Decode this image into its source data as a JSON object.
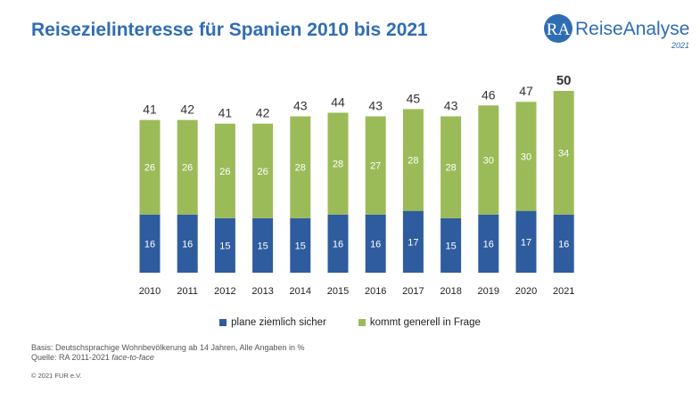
{
  "title": "Reisezielinteresse für Spanien 2010 bis 2021",
  "logo": {
    "abbr": "RA",
    "name": "ReiseAnalyse",
    "year": "2021"
  },
  "chart_data": {
    "type": "bar",
    "stacked": true,
    "title": "Reisezielinteresse für Spanien 2010 bis 2021",
    "categories": [
      "2010",
      "2011",
      "2012",
      "2013",
      "2014",
      "2015",
      "2016",
      "2017",
      "2018",
      "2019",
      "2020",
      "2021"
    ],
    "series": [
      {
        "name": "plane ziemlich sicher",
        "color": "#2e5c9e",
        "values": [
          16,
          16,
          15,
          15,
          15,
          16,
          16,
          17,
          15,
          16,
          17,
          16
        ]
      },
      {
        "name": "kommt generell in Frage",
        "color": "#9bbb59",
        "values": [
          26,
          26,
          26,
          26,
          28,
          28,
          27,
          28,
          28,
          30,
          30,
          34
        ]
      }
    ],
    "totals": [
      41,
      42,
      41,
      42,
      43,
      44,
      43,
      45,
      43,
      46,
      47,
      50
    ],
    "highlight_total_index": 11,
    "ylim": [
      0,
      50
    ],
    "grid": false,
    "legend_position": "bottom"
  },
  "notes": {
    "basis": "Basis: Deutschsprachige Wohnbevölkerung ab 14 Jahren, Alle Angaben in %",
    "source_prefix": "Quelle: RA 2011-2021 ",
    "source_italic": "face-to-face"
  },
  "copyright": "© 2021 FUR e.V."
}
